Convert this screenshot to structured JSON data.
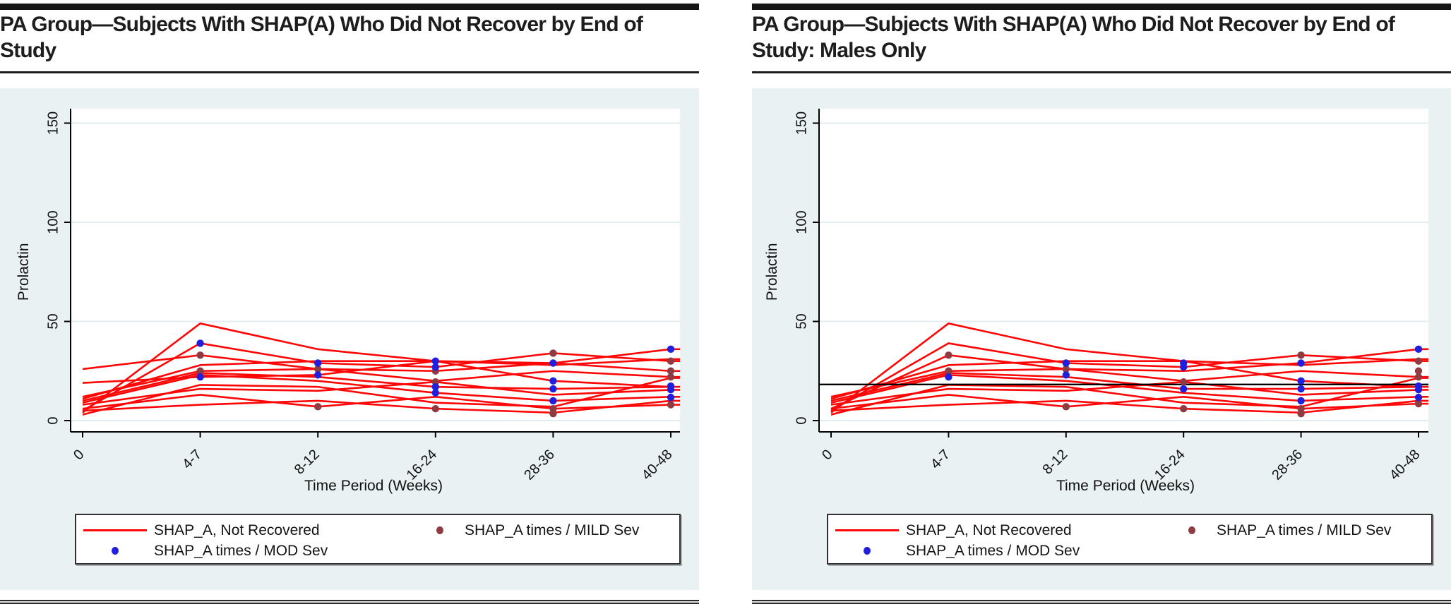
{
  "colors": {
    "line_red": "#fe0606",
    "mod_blue": "#1f1fdd",
    "mild_maroon": "#8e3b42",
    "plot_bg": "#eaf1f3",
    "plot_inner": "#ffffff",
    "grid": "#e2edef",
    "axis": "#000000",
    "refline": "#000000",
    "rule_black": "#161616"
  },
  "legend": {
    "not_recovered": "SHAP_A, Not Recovered",
    "mild": "SHAP_A times / MILD Sev",
    "mod": "SHAP_A times / MOD Sev"
  },
  "chart_data": [
    {
      "type": "line",
      "title": "PA Group—Subjects With SHAP(A) Who Did Not Recover by End of Study",
      "xlabel": "Time Period (Weeks)",
      "ylabel": "Prolactin",
      "categories": [
        "0",
        "4-7",
        "8-12",
        "16-24",
        "28-36",
        "40-48"
      ],
      "ytick_labels": [
        "0",
        "50",
        "100",
        "150"
      ],
      "yticks": [
        0,
        50,
        100,
        150
      ],
      "ylim": [
        0,
        157
      ],
      "grid": "horizontal",
      "legend_position": "bottom",
      "series_label": "SHAP_A, Not Recovered",
      "lines": [
        [
          4,
          49,
          36,
          30,
          28,
          31
        ],
        [
          5,
          39,
          29,
          27,
          34,
          30
        ],
        [
          26,
          33,
          26,
          25,
          29,
          36
        ],
        [
          19,
          22,
          23,
          30,
          29,
          25
        ],
        [
          12,
          25,
          26,
          20,
          25,
          22
        ],
        [
          11,
          28,
          30,
          30,
          20,
          17
        ],
        [
          10,
          24,
          22,
          17,
          16,
          17
        ],
        [
          9,
          23,
          20,
          14,
          10,
          12
        ],
        [
          8,
          16,
          15,
          19.5,
          13,
          15.5
        ],
        [
          6,
          13,
          7,
          12,
          6,
          8
        ],
        [
          5,
          8,
          10,
          6,
          4,
          10
        ],
        [
          3,
          18,
          17,
          9,
          7,
          21.5
        ]
      ],
      "mod_sev_points": [
        [
          1,
          39
        ],
        [
          1,
          22
        ],
        [
          2,
          29
        ],
        [
          2,
          23
        ],
        [
          3,
          30
        ],
        [
          3,
          27
        ],
        [
          3,
          17
        ],
        [
          3,
          14
        ],
        [
          4,
          29
        ],
        [
          4,
          20
        ],
        [
          4,
          16
        ],
        [
          4,
          10
        ],
        [
          5,
          36
        ],
        [
          5,
          17.4
        ],
        [
          5,
          15.6
        ],
        [
          5,
          11.7
        ]
      ],
      "mild_sev_points": [
        [
          1,
          33
        ],
        [
          1,
          25
        ],
        [
          2,
          26
        ],
        [
          2,
          7
        ],
        [
          3,
          25
        ],
        [
          3,
          19.5
        ],
        [
          3,
          6
        ],
        [
          4,
          34
        ],
        [
          4,
          6
        ],
        [
          4,
          3.5
        ],
        [
          5,
          30
        ],
        [
          5,
          25
        ],
        [
          5,
          22
        ],
        [
          5,
          8
        ]
      ],
      "refline": null
    },
    {
      "type": "line",
      "title": "PA Group—Subjects With SHAP(A) Who Did Not Recover by End of Study: Males Only",
      "xlabel": "Time Period (Weeks)",
      "ylabel": "Prolactin",
      "categories": [
        "0",
        "4-7",
        "8-12",
        "16-24",
        "28-36",
        "40-48"
      ],
      "ytick_labels": [
        "0",
        "50",
        "100",
        "150"
      ],
      "yticks": [
        0,
        50,
        100,
        150
      ],
      "ylim": [
        0,
        157
      ],
      "grid": "horizontal",
      "legend_position": "bottom",
      "series_label": "SHAP_A, Not Recovered",
      "lines": [
        [
          4,
          49,
          36,
          30,
          28,
          31
        ],
        [
          5,
          39,
          29,
          27,
          33,
          30
        ],
        [
          6,
          33,
          26,
          25,
          29,
          36
        ],
        [
          12,
          25,
          26,
          20,
          25,
          22
        ],
        [
          11,
          28,
          30,
          30,
          20,
          17
        ],
        [
          10,
          24,
          22,
          16,
          16,
          17
        ],
        [
          9,
          23,
          20,
          14,
          10,
          12
        ],
        [
          8,
          16,
          15,
          19.5,
          13,
          15.5
        ],
        [
          6,
          13,
          7,
          12,
          6,
          8.5
        ],
        [
          5,
          8,
          10,
          6,
          4,
          10
        ],
        [
          3,
          18,
          17,
          9,
          7,
          21.5
        ]
      ],
      "mod_sev_points": [
        [
          1,
          22
        ],
        [
          2,
          29
        ],
        [
          2,
          23
        ],
        [
          3,
          29
        ],
        [
          3,
          27
        ],
        [
          3,
          16
        ],
        [
          4,
          29
        ],
        [
          4,
          20
        ],
        [
          4,
          16
        ],
        [
          4,
          10
        ],
        [
          5,
          36
        ],
        [
          5,
          17.4
        ],
        [
          5,
          15.6
        ],
        [
          5,
          11.7
        ]
      ],
      "mild_sev_points": [
        [
          1,
          33
        ],
        [
          1,
          25
        ],
        [
          2,
          26
        ],
        [
          2,
          7
        ],
        [
          3,
          19.5
        ],
        [
          3,
          6
        ],
        [
          4,
          33
        ],
        [
          4,
          6
        ],
        [
          4,
          3.5
        ],
        [
          5,
          30
        ],
        [
          5,
          25
        ],
        [
          5,
          22
        ],
        [
          5,
          8.5
        ]
      ],
      "refline": 18.2
    }
  ]
}
